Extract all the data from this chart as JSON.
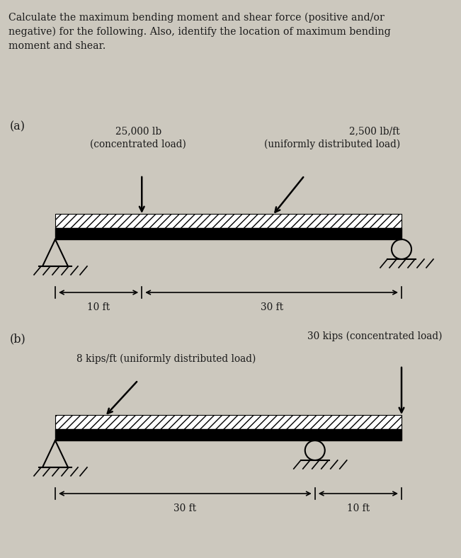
{
  "bg_color": "#ccc8be",
  "title_text": "Calculate the maximum bending moment and shear force (positive and/or\nnegative) for the following. Also, identify the location of maximum bending\nmoment and shear.",
  "part_a_label": "(a)",
  "part_b_label": "(b)",
  "a_conc_load_label": "25,000 lb\n(concentrated load)",
  "a_udl_label": "2,500 lb/ft\n(uniformly distributed load)",
  "a_dim1": "10 ft",
  "a_dim2": "30 ft",
  "b_conc_load_label": "30 kips (concentrated load)",
  "b_udl_label": "8 kips/ft (uniformly distributed load)",
  "b_dim1": "30 ft",
  "b_dim2": "10 ft",
  "text_color": "#1a1a1a",
  "beam_color": "#1a1a1a",
  "hatch_color": "#1a1a1a"
}
